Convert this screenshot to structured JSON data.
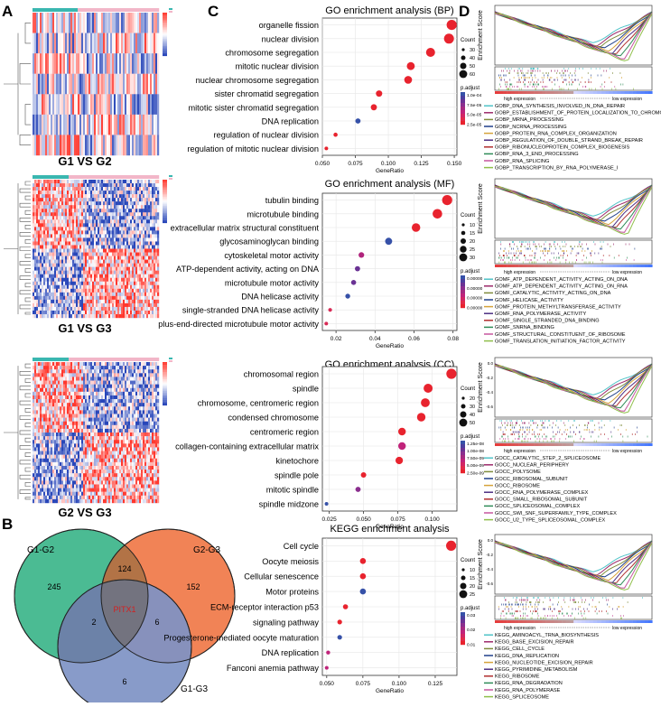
{
  "panels": {
    "A": "A",
    "B": "B",
    "C": "C",
    "D": "D"
  },
  "heatmaps": [
    {
      "label": "G1 VS G2",
      "rows": 7,
      "cols": 70
    },
    {
      "label": "G1 VS G3",
      "rows": 38,
      "cols": 70
    },
    {
      "label": "G2 VS G3",
      "rows": 38,
      "cols": 70
    }
  ],
  "venn": {
    "sets": [
      "G1-G2",
      "G2-G3",
      "G1-G3"
    ],
    "colors": [
      "#3cb58a",
      "#f07848",
      "#7e92c4"
    ],
    "counts": {
      "a_only": "245",
      "b_only": "152",
      "c_only": "6",
      "ab": "124",
      "ac": "2",
      "bc": "6",
      "abc": "PITX1"
    }
  },
  "chart_data": [
    {
      "type": "scatter",
      "title": "GO enrichment analysis (BP)",
      "xlabel": "GeneRatio",
      "xlim": [
        0.05,
        0.152
      ],
      "xticks": [
        "0.050",
        "0.075",
        "0.100",
        "0.125",
        "0.150"
      ],
      "xtick_values": [
        0.05,
        0.075,
        0.1,
        0.125,
        0.15
      ],
      "categories": [
        "organelle fission",
        "nuclear division",
        "chromosome segregation",
        "mitotic nuclear division",
        "nuclear chromosome segregation",
        "sister chromatid segregation",
        "mitotic sister chromatid segregation",
        "DNA replication",
        "regulation of nuclear division",
        "regulation of mitotic nuclear division"
      ],
      "x": [
        0.148,
        0.146,
        0.132,
        0.117,
        0.115,
        0.093,
        0.089,
        0.077,
        0.06,
        0.053
      ],
      "count": [
        62,
        61,
        55,
        49,
        48,
        39,
        37,
        32,
        25,
        22
      ],
      "padj_color": [
        "#e8232e",
        "#e8232e",
        "#e8232e",
        "#e8232e",
        "#e8232e",
        "#e8232e",
        "#e8232e",
        "#3651a8",
        "#e8232e",
        "#e8232e"
      ],
      "size_legend_title": "Count",
      "size_legend": [
        "30",
        "40",
        "50",
        "60"
      ],
      "size_legend_values": [
        30,
        40,
        50,
        60
      ],
      "color_legend_title": "p.adjust",
      "color_legend": [
        "1.0e-04",
        "7.5e-05",
        "5.0e-05",
        "2.5e-05"
      ]
    },
    {
      "type": "scatter",
      "title": "GO enrichment analysis (MF)",
      "xlabel": "GeneRatio",
      "xlim": [
        0.013,
        0.082
      ],
      "xticks": [
        "0.02",
        "0.04",
        "0.06",
        "0.08"
      ],
      "xtick_values": [
        0.02,
        0.04,
        0.06,
        0.08
      ],
      "categories": [
        "tubulin binding",
        "microtubule binding",
        "extracellular matrix structural constituent",
        "glycosaminoglycan binding",
        "cytoskeletal motor activity",
        "ATP-dependent activity, acting on DNA",
        "microtubule motor activity",
        "DNA helicase activity",
        "single-stranded DNA helicase activity",
        "plus-end-directed microtubule motor activity"
      ],
      "x": [
        0.077,
        0.072,
        0.061,
        0.047,
        0.033,
        0.031,
        0.029,
        0.026,
        0.017,
        0.015
      ],
      "count": [
        33,
        31,
        26,
        20,
        14,
        13,
        12,
        11,
        7,
        6
      ],
      "padj_color": [
        "#e8232e",
        "#e8232e",
        "#e8232e",
        "#3651a8",
        "#b0247c",
        "#6a3294",
        "#6a3294",
        "#3651a8",
        "#d82a55",
        "#d82a55"
      ],
      "size_legend_title": "Count",
      "size_legend": [
        "10",
        "15",
        "20",
        "25",
        "30"
      ],
      "size_legend_values": [
        10,
        15,
        20,
        25,
        30
      ],
      "color_legend_title": "p.adjust",
      "color_legend": [
        "0.00000",
        "0.00000",
        "0.00000",
        "0.00000"
      ]
    },
    {
      "type": "scatter",
      "title": "GO enrichment analysis (CC)",
      "xlabel": "GeneRatio",
      "xlim": [
        0.02,
        0.118
      ],
      "xticks": [
        "0.025",
        "0.050",
        "0.075",
        "0.100"
      ],
      "xtick_values": [
        0.025,
        0.05,
        0.075,
        0.1
      ],
      "categories": [
        "chromosomal region",
        "spindle",
        "chromosome, centromeric region",
        "condensed chromosome",
        "centromeric region",
        "collagen-containing extracellular matrix",
        "kinetochore",
        "spindle pole",
        "mitotic spindle",
        "spindle midzone"
      ],
      "x": [
        0.114,
        0.097,
        0.095,
        0.092,
        0.078,
        0.078,
        0.076,
        0.05,
        0.046,
        0.023
      ],
      "count": [
        56,
        48,
        47,
        45,
        38,
        38,
        37,
        24,
        22,
        11
      ],
      "padj_color": [
        "#e8232e",
        "#e8232e",
        "#e8232e",
        "#e8232e",
        "#e8232e",
        "#c0237a",
        "#e8232e",
        "#e8232e",
        "#8a2e8e",
        "#3651a8"
      ],
      "size_legend_title": "Count",
      "size_legend": [
        "20",
        "30",
        "40",
        "50"
      ],
      "size_legend_values": [
        20,
        30,
        40,
        50
      ],
      "color_legend_title": "p.adjust",
      "color_legend": [
        "1.25e-08",
        "1.00e-08",
        "7.50e-09",
        "5.00e-09",
        "2.50e-09"
      ]
    },
    {
      "type": "scatter",
      "title": "KEGG enrichment analysis",
      "xlabel": "GeneRatio",
      "xlim": [
        0.047,
        0.14
      ],
      "xticks": [
        "0.050",
        "0.075",
        "0.100",
        "0.125"
      ],
      "xtick_values": [
        0.05,
        0.075,
        0.1,
        0.125
      ],
      "categories": [
        "Cell cycle",
        "Oocyte meiosis",
        "Cellular senescence",
        "Motor proteins",
        "ECM-receptor interaction p53",
        "signaling pathway",
        "Progesterone-mediated oocyte maturation",
        "DNA replication",
        "Fanconi anemia pathway"
      ],
      "x": [
        0.136,
        0.075,
        0.075,
        0.075,
        0.063,
        0.059,
        0.059,
        0.051,
        0.05
      ],
      "count": [
        28,
        16,
        16,
        16,
        13,
        12,
        12,
        10,
        9
      ],
      "padj_color": [
        "#e8232e",
        "#e8232e",
        "#e8232e",
        "#3651a8",
        "#e8232e",
        "#e8232e",
        "#3651a8",
        "#c0237a",
        "#c0237a"
      ],
      "size_legend_title": "Count",
      "size_legend": [
        "10",
        "15",
        "20",
        "25"
      ],
      "size_legend_values": [
        10,
        15,
        20,
        25
      ],
      "color_legend_title": "p.adjust",
      "color_legend": [
        "0.03",
        "0.02",
        "0.01"
      ]
    }
  ],
  "gsea": [
    {
      "ylabel": "Enrichment Score",
      "high": "high expression",
      "low": "low expression",
      "yticks": [],
      "terms": [
        "GOBP_DNA_SYNTHESIS_INVOLVED_IN_DNA_REPAIR",
        "GOBP_ESTABLISHMENT_OF_PROTEIN_LOCALIZATION_TO_CHROMOSOME",
        "GOBP_MRNA_PROCESSING",
        "GOBP_NCRNA_PROCESSING",
        "GOBP_PROTEIN_RNA_COMPLEX_ORGANIZATION",
        "GOBP_REGULATION_OF_DOUBLE_STRAND_BREAK_REPAIR",
        "GOBP_RIBONUCLEOPROTEIN_COMPLEX_BIOGENESIS",
        "GOBP_RNA_3_END_PROCESSING",
        "GOBP_RNA_SPLICING",
        "GOBP_TRANSCRIPTION_BY_RNA_POLYMERASE_I"
      ],
      "colors": [
        "#4fc3c8",
        "#9c2a6a",
        "#7f8c3c",
        "#1f3f8a",
        "#d6a33a",
        "#4b2e82",
        "#b02e2e",
        "#2e8b57",
        "#c7569f",
        "#8fbf4a"
      ]
    },
    {
      "ylabel": "Enrichment Score",
      "high": "high expression",
      "low": "low expression",
      "yticks": [],
      "terms": [
        "GOMF_ATP_DEPENDENT_ACTIVITY_ACTING_ON_DNA",
        "GOMF_ATP_DEPENDENT_ACTIVITY_ACTING_ON_RNA",
        "GOMF_CATALYTIC_ACTIVITY_ACTING_ON_DNA",
        "GOMF_HELICASE_ACTIVITY",
        "GOMF_PROTEIN_METHYLTRANSFERASE_ACTIVITY",
        "GOMF_RNA_POLYMERASE_ACTIVITY",
        "GOMF_SINGLE_STRANDED_DNA_BINDING",
        "GOMF_SNRNA_BINDING",
        "GOMF_STRUCTURAL_CONSTITUENT_OF_RIBOSOME",
        "GOMF_TRANSLATION_INITIATION_FACTOR_ACTIVITY"
      ],
      "colors": [
        "#4fc3c8",
        "#9c2a6a",
        "#7f8c3c",
        "#1f3f8a",
        "#d6a33a",
        "#4b2e82",
        "#b02e2e",
        "#2e8b57",
        "#c7569f",
        "#8fbf4a"
      ]
    },
    {
      "ylabel": "Enrichment Score",
      "high": "high expression",
      "low": "low expression",
      "yticks": [
        "0.0",
        "-0.2",
        "-0.4",
        "-0.6"
      ],
      "terms": [
        "GOCC_CATALYTIC_STEP_2_SPLICEOSOME",
        "GOCC_NUCLEAR_PERIPHERY",
        "GOCC_POLYSOME",
        "GOCC_RIBOSOMAL_SUBUNIT",
        "GOCC_RIBOSOME",
        "GOCC_RNA_POLYMERASE_COMPLEX",
        "GOCC_SMALL_RIBOSOMAL_SUBUNIT",
        "GOCC_SPLICEOSOMAL_COMPLEX",
        "GOCC_SWI_SNF_SUPERFAMILY_TYPE_COMPLEX",
        "GOCC_U2_TYPE_SPLICEOSOMAL_COMPLEX"
      ],
      "colors": [
        "#4fc3c8",
        "#9c2a6a",
        "#7f8c3c",
        "#1f3f8a",
        "#d6a33a",
        "#4b2e82",
        "#b02e2e",
        "#2e8b57",
        "#c7569f",
        "#8fbf4a"
      ]
    },
    {
      "ylabel": "Enrichment Score",
      "high": "high expression",
      "low": "low expression",
      "yticks": [
        "0.0",
        "-0.2",
        "-0.4",
        "-0.6"
      ],
      "terms": [
        "KEGG_AMINOACYL_TRNA_BIOSYNTHESIS",
        "KEGG_BASE_EXCISION_REPAIR",
        "KEGG_CELL_CYCLE",
        "KEGG_DNA_REPLICATION",
        "KEGG_NUCLEOTIDE_EXCISION_REPAIR",
        "KEGG_PYRIMIDINE_METABOLISM",
        "KEGG_RIBOSOME",
        "KEGG_RNA_DEGRADATION",
        "KEGG_RNA_POLYMERASE",
        "KEGG_SPLICEOSOME"
      ],
      "colors": [
        "#4fc3c8",
        "#9c2a6a",
        "#7f8c3c",
        "#1f3f8a",
        "#d6a33a",
        "#4b2e82",
        "#b02e2e",
        "#2e8b57",
        "#c7569f",
        "#8fbf4a"
      ]
    }
  ]
}
